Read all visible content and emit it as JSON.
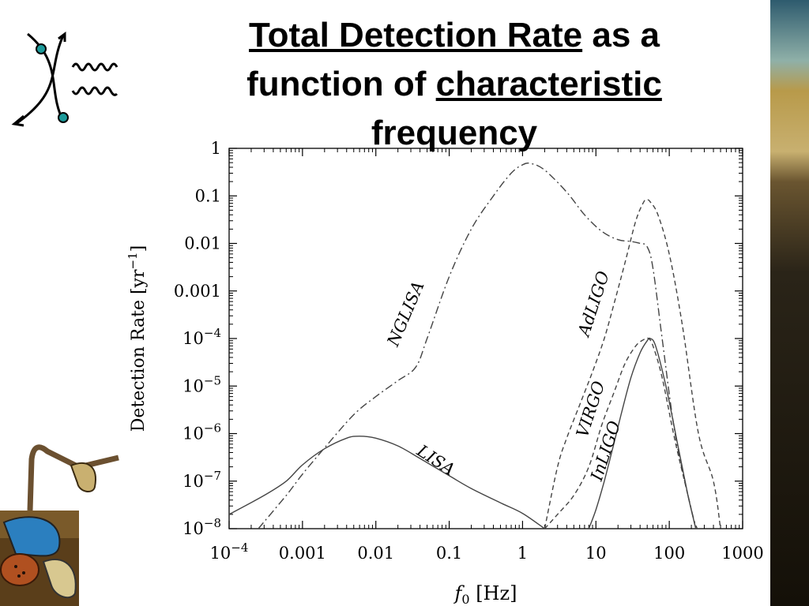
{
  "slide_title": {
    "part1": "Total Detection Rate",
    "part2": " as a function of ",
    "part3": "characteristic",
    "part4": " frequency"
  },
  "colors": {
    "axis": "#000000",
    "curve": "#444444",
    "painting_sky": "#2e5b6e",
    "painting_ground": "#7a5a2a",
    "feynman_dot": "#1c9a9a"
  },
  "icons": [
    "feynman-diagram-icon",
    "dali-painting-strip",
    "dali-melting-clocks-image"
  ],
  "chart_data": {
    "type": "line",
    "title": "",
    "xlabel_prefix": "f",
    "xlabel_sub": "0",
    "xlabel_suffix": " [Hz]",
    "ylabel": "Detection Rate [yr",
    "ylabel_sup": "−1",
    "ylabel_close": "]",
    "xscale": "log",
    "yscale": "log",
    "xlim": [
      0.0001,
      1000
    ],
    "ylim": [
      1e-08,
      1
    ],
    "grid": false,
    "legend": "none (curves labelled inline)",
    "x_ticks": [
      {
        "value": 0.0001,
        "base": "10",
        "exp": "−4"
      },
      {
        "value": 0.001,
        "label": "0.001"
      },
      {
        "value": 0.01,
        "label": "0.01"
      },
      {
        "value": 0.1,
        "label": "0.1"
      },
      {
        "value": 1,
        "label": "1"
      },
      {
        "value": 10,
        "label": "10"
      },
      {
        "value": 100,
        "label": "100"
      },
      {
        "value": 1000,
        "label": "1000"
      }
    ],
    "y_ticks": [
      {
        "value": 1,
        "label": "1"
      },
      {
        "value": 0.1,
        "label": "0.1"
      },
      {
        "value": 0.01,
        "label": "0.01"
      },
      {
        "value": 0.001,
        "label": "0.001"
      },
      {
        "value": 0.0001,
        "base": "10",
        "exp": "−4"
      },
      {
        "value": 1e-05,
        "base": "10",
        "exp": "−5"
      },
      {
        "value": 1e-06,
        "base": "10",
        "exp": "−6"
      },
      {
        "value": 1e-07,
        "base": "10",
        "exp": "−7"
      },
      {
        "value": 1e-08,
        "base": "10",
        "exp": "−8"
      }
    ],
    "series": [
      {
        "name": "LISA",
        "style": "solid",
        "x": [
          0.0001,
          0.0003,
          0.0006,
          0.001,
          0.002,
          0.004,
          0.006,
          0.01,
          0.02,
          0.04,
          0.1,
          0.2,
          0.5,
          1,
          2
        ],
        "y": [
          2e-08,
          5e-08,
          1e-07,
          2.2e-07,
          4.8e-07,
          8e-07,
          8.8e-07,
          8e-07,
          5.5e-07,
          3e-07,
          1.3e-07,
          7e-08,
          3.5e-08,
          2.1e-08,
          1e-08
        ]
      },
      {
        "name": "NGLISA",
        "style": "dashdot",
        "x": [
          0.00025,
          0.0006,
          0.001,
          0.002,
          0.005,
          0.01,
          0.02,
          0.035,
          0.05,
          0.1,
          0.2,
          0.4,
          0.7,
          1,
          1.3,
          2,
          4,
          7,
          12,
          20,
          30,
          40,
          50,
          60,
          80,
          120,
          200,
          240
        ],
        "y": [
          1e-08,
          5e-08,
          1.4e-07,
          5e-07,
          2.5e-06,
          6e-06,
          1.3e-05,
          2.5e-05,
          0.0001,
          0.002,
          0.02,
          0.1,
          0.3,
          0.45,
          0.48,
          0.35,
          0.12,
          0.04,
          0.018,
          0.012,
          0.011,
          0.01,
          0.0085,
          0.003,
          0.0001,
          1e-06,
          2.5e-08,
          1e-08
        ]
      },
      {
        "name": "AdLIGO",
        "style": "dashed",
        "x": [
          2,
          3,
          4,
          6,
          9,
          13,
          18,
          25,
          35,
          45,
          50,
          55,
          70,
          100,
          150,
          250,
          400,
          500
        ],
        "y": [
          1e-08,
          2e-07,
          8e-07,
          4e-06,
          2e-05,
          0.0001,
          0.0006,
          0.004,
          0.03,
          0.075,
          0.082,
          0.075,
          0.04,
          0.006,
          0.0002,
          1e-06,
          1e-07,
          1e-08
        ]
      },
      {
        "name": "VIRGO",
        "style": "dashed",
        "x": [
          2,
          3,
          5,
          8,
          12,
          18,
          25,
          35,
          45,
          52,
          60,
          80,
          120,
          180,
          230
        ],
        "y": [
          1e-08,
          2e-08,
          5e-08,
          2e-07,
          1.5e-06,
          8e-06,
          3e-05,
          7e-05,
          9.5e-05,
          0.0001,
          7e-05,
          1.5e-05,
          7e-07,
          5e-08,
          1e-08
        ]
      },
      {
        "name": "InLIGO",
        "style": "solid",
        "x": [
          8,
          10,
          13,
          17,
          22,
          30,
          40,
          50,
          55,
          65,
          90,
          130,
          180,
          230
        ],
        "y": [
          1e-08,
          2.5e-08,
          1e-07,
          5e-07,
          2.5e-06,
          1.5e-05,
          5e-05,
          9e-05,
          0.0001,
          7e-05,
          1e-05,
          6e-07,
          5e-08,
          1e-08
        ]
      }
    ],
    "annotations": [
      {
        "text": "NGLISA",
        "x": 0.03,
        "y": 0.0003,
        "angle": -67
      },
      {
        "text": "LISA",
        "x": 0.06,
        "y": 2.2e-07,
        "angle": 33
      },
      {
        "text": "AdLIGO",
        "x": 11,
        "y": 0.0005,
        "angle": -72
      },
      {
        "text": "VIRGO",
        "x": 10,
        "y": 3e-06,
        "angle": -72
      },
      {
        "text": "InLIGO",
        "x": 16,
        "y": 4e-07,
        "angle": -72
      }
    ]
  }
}
